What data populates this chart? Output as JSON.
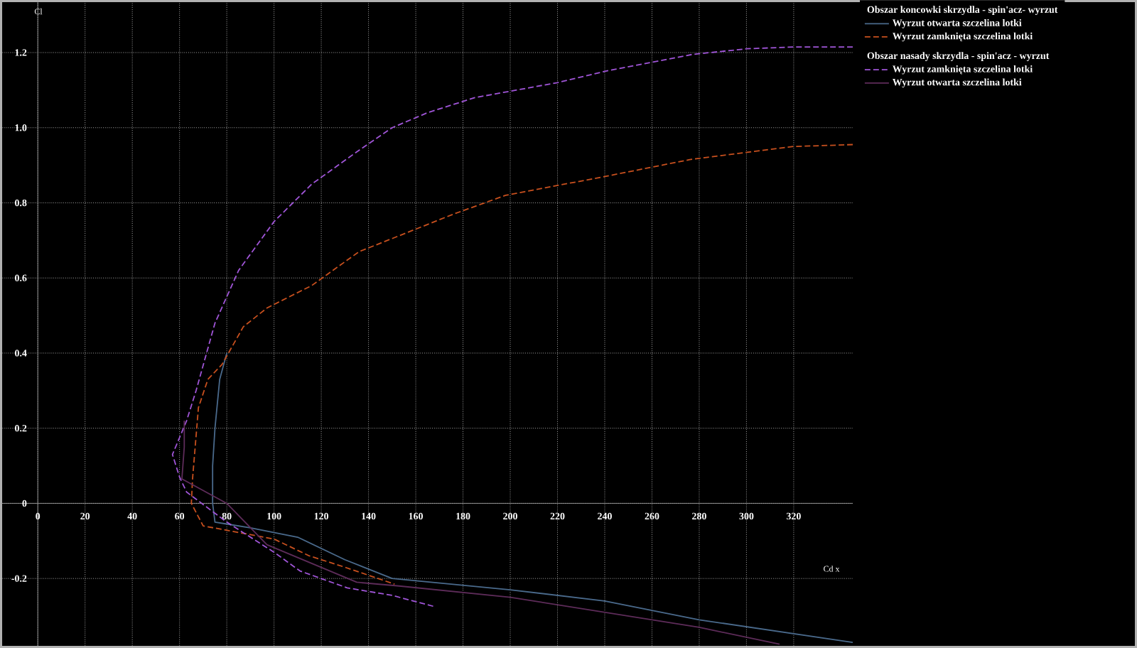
{
  "chart_data": {
    "type": "line",
    "xlabel": "Cd  x",
    "ylabel": "Cl",
    "xlim": [
      -16,
      345
    ],
    "ylim": [
      -0.385,
      1.34
    ],
    "xticks": [
      0,
      20,
      40,
      60,
      80,
      100,
      120,
      140,
      160,
      180,
      200,
      220,
      240,
      260,
      280,
      300,
      320
    ],
    "yticks": [
      -0.2,
      0,
      0.2,
      0.4,
      0.6,
      0.8,
      {
        "value": 1,
        "label": "1.0"
      },
      1.2
    ],
    "grid": true,
    "legend": "right",
    "marker": "none",
    "annotations": [
      "Obszar koncowki skrzydla - spin'acz- wyrzut",
      "Obszar nasady skrzydla - spin'acz - wyrzut"
    ],
    "series": [
      {
        "name": "Wyrzut otwarta szczelina lotki",
        "color": "#4a6a8c",
        "line_style": "solid",
        "x": [
          80,
          77,
          75,
          74,
          74,
          75,
          80,
          90,
          110,
          130,
          150,
          200,
          240,
          280,
          345
        ],
        "values": [
          0.4,
          0.33,
          0.2,
          0.1,
          0,
          -0.05,
          -0.055,
          -0.065,
          -0.09,
          -0.15,
          -0.2,
          -0.23,
          -0.26,
          -0.31,
          -0.37
        ]
      },
      {
        "name": "Wyrzut zamknięta szczelina lotki",
        "color": "#c8501e",
        "line_style": "dashed",
        "x": [
          345,
          320,
          276,
          240,
          198,
          176,
          156,
          136,
          116,
          97,
          87,
          78,
          72,
          68,
          65.5,
          65,
          70,
          100,
          115,
          130,
          151
        ],
        "values": [
          0.955,
          0.95,
          0.915,
          0.87,
          0.82,
          0.77,
          0.72,
          0.67,
          0.58,
          0.52,
          0.47,
          0.37,
          0.33,
          0.255,
          0.065,
          0,
          -0.06,
          -0.095,
          -0.14,
          -0.17,
          -0.215
        ]
      },
      {
        "name": "Wyrzut zamknięta szczelina lotki",
        "color": "#a055d8",
        "line_style": "dashed",
        "x": [
          345,
          320,
          300,
          277,
          240,
          220,
          185,
          165,
          150,
          136,
          116,
          100,
          85,
          75,
          67,
          63,
          57,
          60,
          63,
          80,
          100,
          111,
          131,
          150,
          168
        ],
        "values": [
          1.215,
          1.215,
          1.21,
          1.195,
          1.15,
          1.12,
          1.08,
          1.04,
          1.0,
          0.94,
          0.85,
          0.75,
          0.62,
          0.48,
          0.3,
          0.22,
          0.13,
          0.07,
          0.03,
          -0.05,
          -0.13,
          -0.18,
          -0.225,
          -0.245,
          -0.275
        ]
      },
      {
        "name": "Wyrzut otwarta szczelina lotki",
        "color": "#5e2c5a",
        "line_style": "solid",
        "x": [
          62,
          62,
          61,
          80,
          97,
          135,
          153,
          200,
          240,
          280,
          314
        ],
        "values": [
          0.22,
          0.15,
          0.065,
          0.0,
          -0.11,
          -0.21,
          -0.22,
          -0.25,
          -0.29,
          -0.33,
          -0.375
        ]
      }
    ]
  }
}
